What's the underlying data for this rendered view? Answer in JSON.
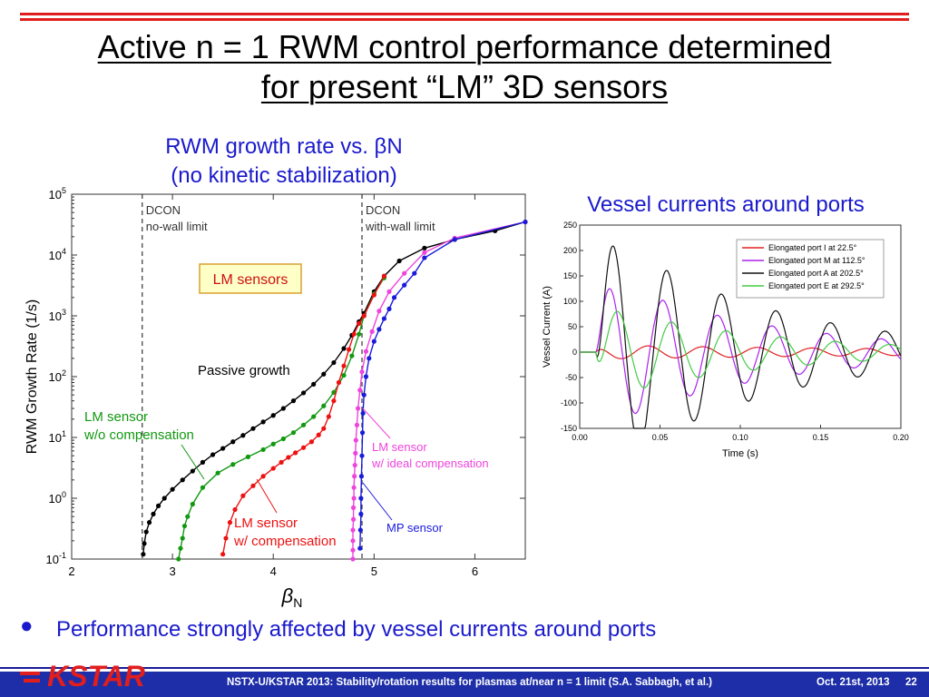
{
  "slide": {
    "title_line1": "Active n = 1 RWM control performance determined",
    "title_line2": "for present  “LM” 3D sensors",
    "bullet": "Performance strongly affected by vessel currents around ports",
    "footer_text": "NSTX-U/KSTAR 2013: Stability/rotation results for plasmas at/near  n = 1 limit (S.A. Sabbagh, et al.)",
    "footer_date": "Oct. 21st, 2013",
    "footer_page": "22",
    "logo_text": "KSTAR",
    "colors": {
      "title": "#000000",
      "accent_blue": "#1a1acc",
      "topbar_red": "#e01e1e",
      "footer_blue": "#1d2ea8"
    }
  },
  "chart_data": [
    {
      "type": "scatter",
      "title": "RWM growth rate vs. βN",
      "subtitle": "(no kinetic stabilization)",
      "xlabel": "βN",
      "ylabel": "RWM Growth Rate (1/s)",
      "xlim": [
        2,
        6.5
      ],
      "ylim": [
        0.1,
        100000
      ],
      "yscale": "log",
      "xticks": [
        "2",
        "3",
        "4",
        "5",
        "6"
      ],
      "yticks": [
        "10^-1",
        "10^0",
        "10^1",
        "10^2",
        "10^3",
        "10^4",
        "10^5"
      ],
      "vlines": [
        {
          "x": 2.7,
          "label1": "DCON",
          "label2": "no-wall limit"
        },
        {
          "x": 4.88,
          "label1": "DCON",
          "label2": "with-wall limit"
        }
      ],
      "box_label": "LM sensors",
      "series": [
        {
          "name": "Passive growth",
          "color": "#000000",
          "points": [
            [
              2.71,
              0.12
            ],
            [
              2.72,
              0.18
            ],
            [
              2.74,
              0.28
            ],
            [
              2.77,
              0.4
            ],
            [
              2.81,
              0.55
            ],
            [
              2.86,
              0.75
            ],
            [
              2.92,
              1.0
            ],
            [
              3.0,
              1.4
            ],
            [
              3.1,
              2.0
            ],
            [
              3.2,
              2.8
            ],
            [
              3.3,
              3.9
            ],
            [
              3.4,
              5.2
            ],
            [
              3.5,
              6.6
            ],
            [
              3.6,
              8.5
            ],
            [
              3.7,
              10.8
            ],
            [
              3.8,
              14
            ],
            [
              3.9,
              18
            ],
            [
              4.0,
              23
            ],
            [
              4.1,
              30
            ],
            [
              4.2,
              40
            ],
            [
              4.3,
              54
            ],
            [
              4.4,
              75
            ],
            [
              4.5,
              110
            ],
            [
              4.6,
              170
            ],
            [
              4.7,
              290
            ],
            [
              4.78,
              480
            ],
            [
              4.85,
              800
            ],
            [
              4.9,
              1100
            ],
            [
              5.0,
              2500
            ],
            [
              5.1,
              4500
            ],
            [
              5.25,
              8000
            ],
            [
              5.5,
              13000
            ],
            [
              5.8,
              18000
            ],
            [
              6.2,
              25000
            ],
            [
              6.5,
              35000
            ]
          ]
        },
        {
          "name": "LM sensor w/o compensation",
          "color": "#119911",
          "points": [
            [
              3.06,
              0.1
            ],
            [
              3.08,
              0.15
            ],
            [
              3.1,
              0.22
            ],
            [
              3.12,
              0.35
            ],
            [
              3.15,
              0.5
            ],
            [
              3.2,
              0.8
            ],
            [
              3.3,
              1.5
            ],
            [
              3.45,
              2.6
            ],
            [
              3.6,
              3.6
            ],
            [
              3.75,
              4.8
            ],
            [
              3.9,
              6.3
            ],
            [
              4.0,
              7.8
            ],
            [
              4.1,
              9.5
            ],
            [
              4.2,
              12
            ],
            [
              4.3,
              16
            ],
            [
              4.4,
              22
            ],
            [
              4.5,
              33
            ],
            [
              4.6,
              55
            ],
            [
              4.7,
              105
            ],
            [
              4.78,
              220
            ],
            [
              4.85,
              500
            ],
            [
              4.9,
              1000
            ],
            [
              5.0,
              2300
            ],
            [
              5.1,
              4200
            ]
          ]
        },
        {
          "name": "LM sensor w/ compensation",
          "color": "#ee1111",
          "points": [
            [
              3.5,
              0.12
            ],
            [
              3.53,
              0.22
            ],
            [
              3.57,
              0.4
            ],
            [
              3.62,
              0.65
            ],
            [
              3.7,
              1.1
            ],
            [
              3.8,
              1.6
            ],
            [
              3.9,
              2.3
            ],
            [
              4.0,
              3.1
            ],
            [
              4.08,
              3.9
            ],
            [
              4.15,
              4.7
            ],
            [
              4.22,
              5.6
            ],
            [
              4.3,
              6.8
            ],
            [
              4.38,
              8.5
            ],
            [
              4.45,
              11
            ],
            [
              4.5,
              14
            ],
            [
              4.55,
              22
            ],
            [
              4.6,
              40
            ],
            [
              4.65,
              80
            ],
            [
              4.7,
              150
            ],
            [
              4.75,
              280
            ],
            [
              4.8,
              500
            ],
            [
              4.85,
              750
            ],
            [
              4.9,
              1000
            ],
            [
              5.0,
              2200
            ],
            [
              5.1,
              4500
            ]
          ]
        },
        {
          "name": "LM sensor w/ ideal compensation",
          "color": "#ee44dd",
          "points": [
            [
              4.79,
              0.1
            ],
            [
              4.79,
              0.14
            ],
            [
              4.79,
              0.2
            ],
            [
              4.79,
              0.3
            ],
            [
              4.795,
              0.45
            ],
            [
              4.795,
              0.7
            ],
            [
              4.8,
              1.0
            ],
            [
              4.8,
              1.5
            ],
            [
              4.805,
              2.3
            ],
            [
              4.81,
              3.5
            ],
            [
              4.815,
              5.5
            ],
            [
              4.82,
              9
            ],
            [
              4.83,
              16
            ],
            [
              4.84,
              30
            ],
            [
              4.86,
              60
            ],
            [
              4.88,
              120
            ],
            [
              4.92,
              260
            ],
            [
              4.98,
              550
            ],
            [
              5.05,
              1200
            ],
            [
              5.15,
              2500
            ],
            [
              5.3,
              5000
            ],
            [
              5.5,
              11000
            ],
            [
              5.8,
              19000
            ],
            [
              6.5,
              35000
            ]
          ]
        },
        {
          "name": "MP sensor",
          "color": "#1a1add",
          "points": [
            [
              4.86,
              0.15
            ],
            [
              4.865,
              0.3
            ],
            [
              4.87,
              0.55
            ],
            [
              4.87,
              1.0
            ],
            [
              4.875,
              2.3
            ],
            [
              4.88,
              5
            ],
            [
              4.885,
              12
            ],
            [
              4.89,
              25
            ],
            [
              4.9,
              50
            ],
            [
              4.92,
              100
            ],
            [
              4.95,
              200
            ],
            [
              5.0,
              380
            ],
            [
              5.05,
              600
            ],
            [
              5.1,
              900
            ],
            [
              5.15,
              1300
            ],
            [
              5.2,
              2000
            ],
            [
              5.3,
              3200
            ],
            [
              5.4,
              5000
            ],
            [
              5.5,
              9000
            ],
            [
              5.8,
              18000
            ],
            [
              6.5,
              35000
            ]
          ]
        }
      ],
      "annotations": [
        {
          "text": "Passive growth"
        },
        {
          "text1": "LM sensor",
          "text2": "w/o compensation"
        },
        {
          "text1": "LM sensor",
          "text2": "w/ compensation"
        },
        {
          "text1": "LM sensor",
          "text2": "w/ ideal compensation"
        },
        {
          "text": "MP sensor"
        }
      ]
    },
    {
      "type": "line",
      "title": "Vessel currents around ports",
      "xlabel": "Time (s)",
      "ylabel": "Vessel Current (A)",
      "xlim": [
        0.0,
        0.2
      ],
      "ylim": [
        -150,
        250
      ],
      "xticks": [
        "0.00",
        "0.05",
        "0.10",
        "0.15",
        "0.20"
      ],
      "yticks": [
        "-150",
        "-100",
        "-50",
        "0",
        "50",
        "100",
        "150",
        "200",
        "250"
      ],
      "legend": "top-right",
      "series": [
        {
          "name": "Elongated port I at 22.5°",
          "color": "#e02020",
          "amp": 14,
          "decay": 4,
          "t0": 0.01,
          "period": 0.034,
          "phase": 1.8
        },
        {
          "name": "Elongated port M at 112.5°",
          "color": "#aa22ee",
          "amp": 155,
          "decay": 10,
          "t0": 0.01,
          "period": 0.034,
          "phase": 0.1
        },
        {
          "name": "Elongated port A at 202.5°",
          "color": "#111111",
          "amp": 250,
          "decay": 10,
          "t0": 0.01,
          "period": 0.034,
          "phase": -0.35
        },
        {
          "name": "Elongated port E at 292.5°",
          "color": "#44cc44",
          "amp": 95,
          "decay": 10,
          "t0": 0.01,
          "period": 0.034,
          "phase": -0.9
        }
      ]
    }
  ]
}
